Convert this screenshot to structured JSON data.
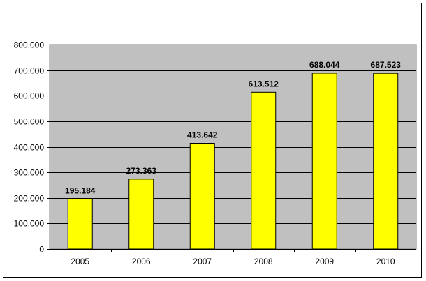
{
  "chart_data": {
    "type": "bar",
    "title": "",
    "xlabel": "",
    "ylabel": "",
    "categories": [
      "2005",
      "2006",
      "2007",
      "2008",
      "2009",
      "2010"
    ],
    "values": [
      195184,
      273363,
      413642,
      613512,
      688044,
      687523
    ],
    "data_labels": [
      "195.184",
      "273.363",
      "413.642",
      "613.512",
      "688.044",
      "687.523"
    ],
    "ylim": [
      0,
      800000
    ],
    "y_ticks": [
      0,
      100000,
      200000,
      300000,
      400000,
      500000,
      600000,
      700000,
      800000
    ],
    "y_tick_labels": [
      "0",
      "100.000",
      "200.000",
      "300.000",
      "400.000",
      "500.000",
      "600.000",
      "700.000",
      "800.000"
    ],
    "grid": true,
    "legend": "none",
    "colors": {
      "bar_fill": "#ffff00",
      "bar_stroke": "#000000",
      "plot_background": "#c0c0c0",
      "gridline": "#000000",
      "frame": "#000000"
    }
  }
}
